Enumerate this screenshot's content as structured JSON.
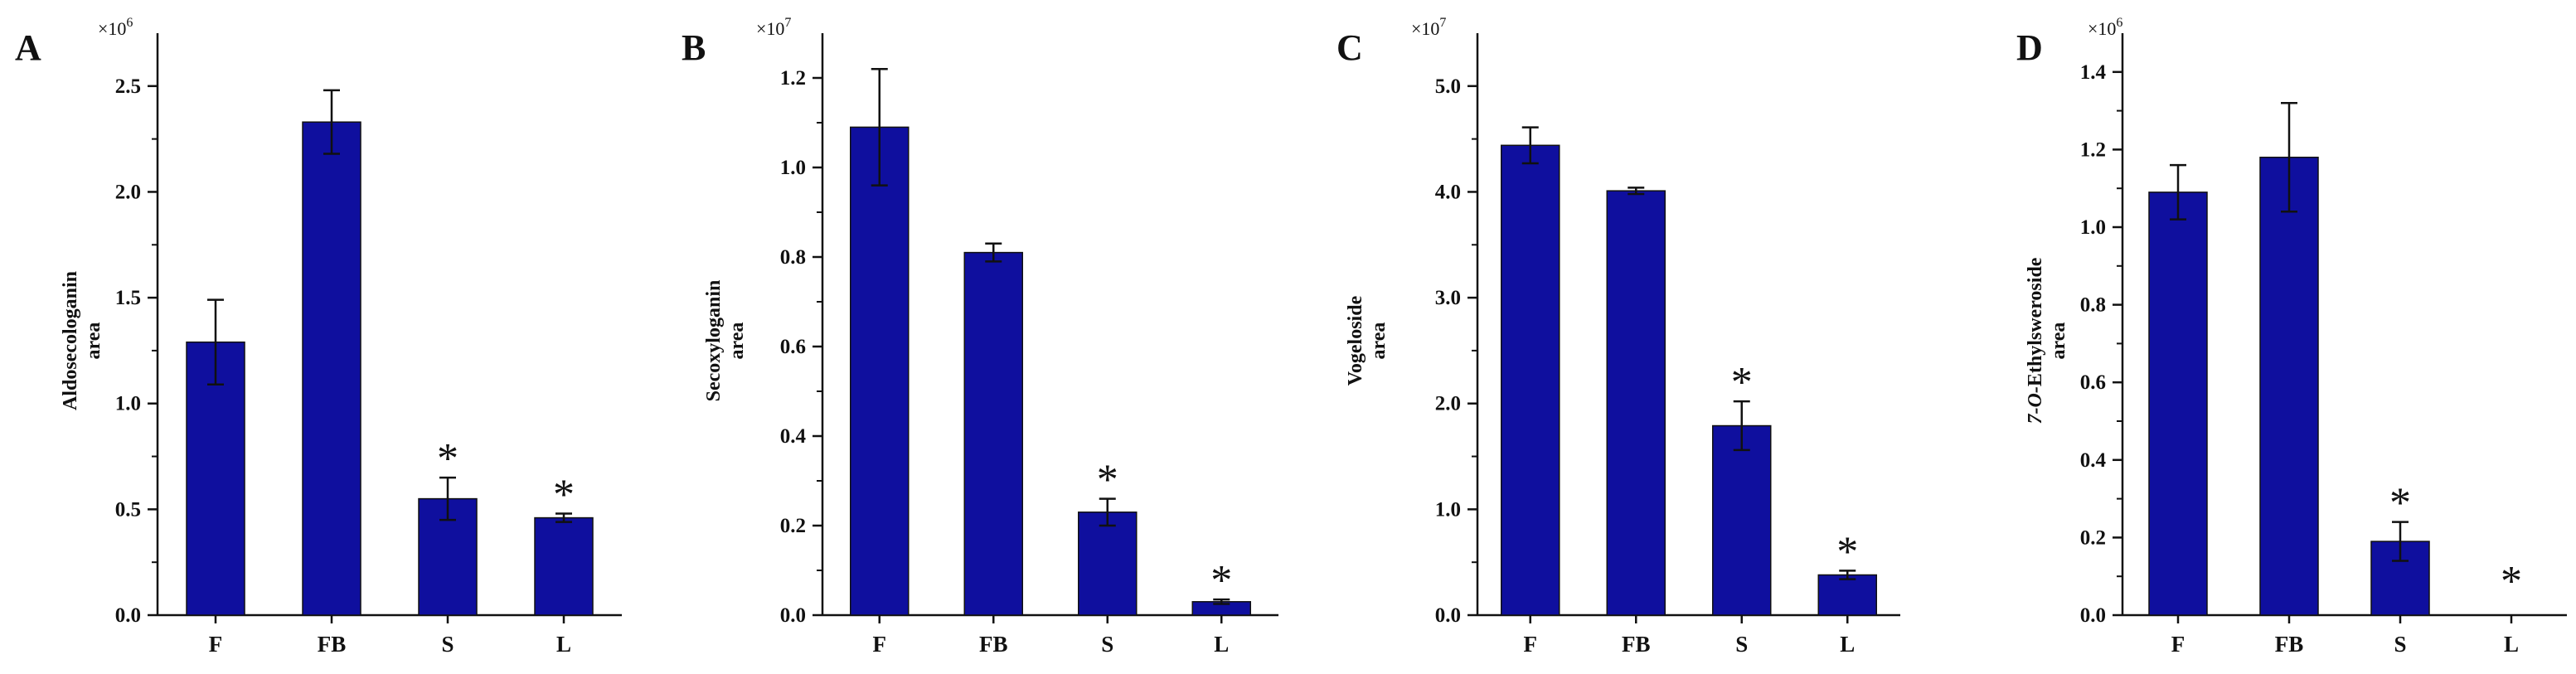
{
  "chart_data": [
    {
      "type": "bar",
      "panel": "A",
      "categories": [
        "F",
        "FB",
        "S",
        "L"
      ],
      "values": [
        1.29,
        2.33,
        0.55,
        0.46
      ],
      "errors": [
        0.2,
        0.15,
        0.1,
        0.02
      ],
      "significant": [
        false,
        false,
        true,
        true
      ],
      "significance_marker": "*",
      "ylabel_lines": [
        "Aldosecologanin",
        "area"
      ],
      "multiplier": "×10",
      "multiplier_exp": "6",
      "ylim": [
        0,
        2.75
      ],
      "ticks": [
        0,
        0.5,
        1.0,
        1.5,
        2.0,
        2.5
      ],
      "tick_labels": [
        "0.0",
        "0.5",
        "1.0",
        "1.5",
        "2.0",
        "2.5"
      ],
      "bar_color": "#0f0f9e"
    },
    {
      "type": "bar",
      "panel": "B",
      "categories": [
        "F",
        "FB",
        "S",
        "L"
      ],
      "values": [
        1.09,
        0.81,
        0.23,
        0.03
      ],
      "errors": [
        0.13,
        0.02,
        0.03,
        0.005
      ],
      "significant": [
        false,
        false,
        true,
        true
      ],
      "significance_marker": "*",
      "ylabel_lines": [
        "Secoxyloganin",
        "area"
      ],
      "multiplier": "×10",
      "multiplier_exp": "7",
      "ylim": [
        0,
        1.3
      ],
      "ticks": [
        0,
        0.2,
        0.4,
        0.6,
        0.8,
        1.0,
        1.2
      ],
      "tick_labels": [
        "0.0",
        "0.2",
        "0.4",
        "0.6",
        "0.8",
        "1.0",
        "1.2"
      ],
      "bar_color": "#0f0f9e"
    },
    {
      "type": "bar",
      "panel": "C",
      "categories": [
        "F",
        "FB",
        "S",
        "L"
      ],
      "values": [
        4.44,
        4.01,
        1.79,
        0.38
      ],
      "errors": [
        0.17,
        0.03,
        0.23,
        0.04
      ],
      "significant": [
        false,
        false,
        true,
        true
      ],
      "significance_marker": "*",
      "ylabel_lines": [
        "Vogeloside",
        "area"
      ],
      "multiplier": "×10",
      "multiplier_exp": "7",
      "ylim": [
        0,
        5.5
      ],
      "ticks": [
        0,
        1.0,
        2.0,
        3.0,
        4.0,
        5.0
      ],
      "tick_labels": [
        "0.0",
        "1.0",
        "2.0",
        "3.0",
        "4.0",
        "5.0"
      ],
      "bar_color": "#0f0f9e"
    },
    {
      "type": "bar",
      "panel": "D",
      "categories": [
        "F",
        "FB",
        "S",
        "L"
      ],
      "values": [
        1.09,
        1.18,
        0.19,
        0
      ],
      "errors": [
        0.07,
        0.14,
        0.05,
        0
      ],
      "significant": [
        false,
        false,
        true,
        true
      ],
      "significance_marker": "*",
      "ylabel_lines": [
        "7-O-Ethylsweroside",
        "area"
      ],
      "multiplier": "×10",
      "multiplier_exp": "6",
      "ylim": [
        0,
        1.5
      ],
      "ticks": [
        0,
        0.2,
        0.4,
        0.6,
        0.8,
        1.0,
        1.2,
        1.4
      ],
      "tick_labels": [
        "0.0",
        "0.2",
        "0.4",
        "0.6",
        "0.8",
        "1.0",
        "1.2",
        "1.4"
      ],
      "bar_color": "#0f0f9e"
    }
  ]
}
